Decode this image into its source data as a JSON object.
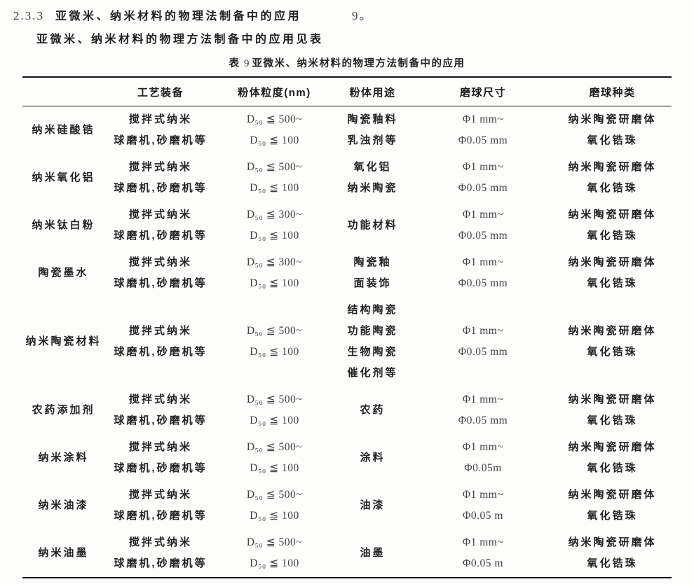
{
  "page": {
    "section_number": "2.3.3",
    "section_title": "亚微米、纳米材料的物理法制备中的应用",
    "section_suffix": "9。",
    "intro_text": "亚微米、纳米材料的物理方法制备中的应用见表",
    "caption_label": "表",
    "caption_number": "9",
    "caption_title": "亚微米、纳米材料的物理方法制备中的应用"
  },
  "table": {
    "columns": [
      "",
      "工艺装备",
      "粉体粒度(nm)",
      "粉体用途",
      "磨球尺寸",
      "磨球种类"
    ],
    "rows": [
      {
        "name": [
          "纳米硅酸锆"
        ],
        "equipment": [
          "搅拌式纳米",
          "球磨机,砂磨机等"
        ],
        "particle_size": [
          "D₅₀ ≦ 500~",
          "D₅₀ ≦ 100"
        ],
        "usage": [
          "陶瓷釉料",
          "乳浊剂等"
        ],
        "ball_size": [
          "Φ1 mm~",
          "Φ0.05 mm"
        ],
        "ball_type": [
          "纳米陶瓷研磨体",
          "氧化锆珠"
        ]
      },
      {
        "name": [
          "纳米氧化铝"
        ],
        "equipment": [
          "搅拌式纳米",
          "球磨机,砂磨机等"
        ],
        "particle_size": [
          "D₅₀ ≦ 500~",
          "D₅₀ ≦ 100"
        ],
        "usage": [
          "氧化铝",
          "纳米陶瓷"
        ],
        "ball_size": [
          "Φ1 mm~",
          "Φ0.05 mm"
        ],
        "ball_type": [
          "纳米陶瓷研磨体",
          "氧化锆珠"
        ]
      },
      {
        "name": [
          "纳米钛白粉"
        ],
        "equipment": [
          "搅拌式纳米",
          "球磨机,砂磨机等"
        ],
        "particle_size": [
          "D₅₀ ≦ 300~",
          "D₅₀ ≦ 100"
        ],
        "usage": [
          "功能材料"
        ],
        "ball_size": [
          "Φ1 mm~",
          "Φ0.05 mm"
        ],
        "ball_type": [
          "纳米陶瓷研磨体",
          "氧化锆珠"
        ]
      },
      {
        "name": [
          "陶瓷墨水"
        ],
        "equipment": [
          "搅拌式纳米",
          "球磨机,砂磨机等"
        ],
        "particle_size": [
          "D₅₀ ≦ 300~",
          "D₅₀ ≦ 100"
        ],
        "usage": [
          "陶瓷釉",
          "面装饰"
        ],
        "ball_size": [
          "Φ1 mm~",
          "Φ0.05 mm"
        ],
        "ball_type": [
          "纳米陶瓷研磨体",
          "氧化锆珠"
        ]
      },
      {
        "name": [
          "纳米陶瓷材料"
        ],
        "equipment": [
          "搅拌式纳米",
          "球磨机,砂磨机等"
        ],
        "particle_size": [
          "D₅₀ ≦ 500~",
          "D₅₀ ≦ 100"
        ],
        "usage": [
          "结构陶瓷",
          "功能陶瓷",
          "生物陶瓷",
          "催化剂等"
        ],
        "ball_size": [
          "Φ1 mm~",
          "Φ0.05 mm"
        ],
        "ball_type": [
          "纳米陶瓷研磨体",
          "氧化锆珠"
        ]
      },
      {
        "name": [
          "农药添加剂"
        ],
        "equipment": [
          "搅拌式纳米",
          "球磨机,砂磨机等"
        ],
        "particle_size": [
          "D₅₀ ≦ 500~",
          "D₅₀ ≦ 100"
        ],
        "usage": [
          "农药"
        ],
        "ball_size": [
          "Φ1 mm~",
          "Φ0.05 mm"
        ],
        "ball_type": [
          "纳米陶瓷研磨体",
          "氧化锆珠"
        ]
      },
      {
        "name": [
          "纳米涂料"
        ],
        "equipment": [
          "搅拌式纳米",
          "球磨机,砂磨机等"
        ],
        "particle_size": [
          "D₅₀ ≦ 500~",
          "D₅₀ ≦ 100"
        ],
        "usage": [
          "涂料"
        ],
        "ball_size": [
          "Φ1 mm~",
          "Φ0.05m"
        ],
        "ball_type": [
          "纳米陶瓷研磨体",
          "氧化锆珠"
        ]
      },
      {
        "name": [
          "纳米油漆"
        ],
        "equipment": [
          "搅拌式纳米",
          "球磨机,砂磨机等"
        ],
        "particle_size": [
          "D₅₀ ≦ 500~",
          "D₅₀ ≦ 100"
        ],
        "usage": [
          "油漆"
        ],
        "ball_size": [
          "Φ1 mm~",
          "Φ0.05 m"
        ],
        "ball_type": [
          "纳米陶瓷研磨体",
          "氧化锆珠"
        ]
      },
      {
        "name": [
          "纳米油墨"
        ],
        "equipment": [
          "搅拌式纳米",
          "球磨机,砂磨机等"
        ],
        "particle_size": [
          "D₅₀ ≦ 500~",
          "D₅₀ ≦ 100"
        ],
        "usage": [
          "油墨"
        ],
        "ball_size": [
          "Φ1 mm~",
          "Φ0.05 m"
        ],
        "ball_type": [
          "纳米陶瓷研磨体",
          "氧化锆珠"
        ]
      }
    ]
  }
}
